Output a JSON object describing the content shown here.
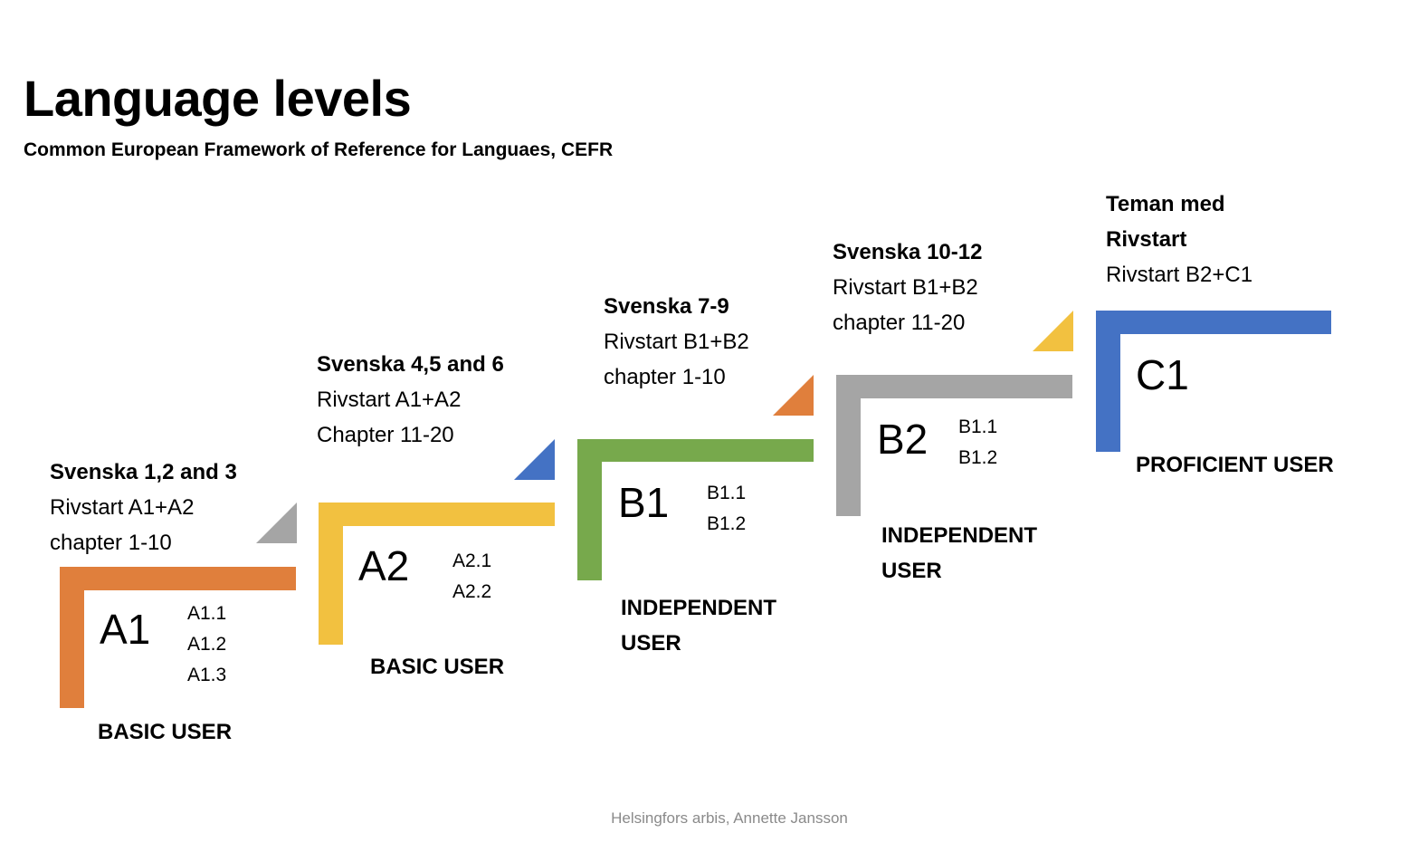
{
  "title": "Language levels",
  "subtitle": "Common European Framework of Reference for Languaes, CEFR",
  "levels": [
    {
      "code": "A1",
      "color": "#E07F3C",
      "triangle_color": "#A5A5A5",
      "sublevels": [
        "A1.1",
        "A1.2",
        "A1.3"
      ],
      "user": [
        "BASIC USER"
      ],
      "course": "Svenska 1,2 and 3",
      "book": "Rivstart A1+A2",
      "chapters": "chapter 1-10"
    },
    {
      "code": "A2",
      "color": "#F2C140",
      "triangle_color": "#4472C4",
      "sublevels": [
        "A2.1",
        "A2.2"
      ],
      "user": [
        "BASIC USER"
      ],
      "course": "Svenska 4,5 and 6",
      "book": "Rivstart A1+A2",
      "chapters": "Chapter 11-20"
    },
    {
      "code": "B1",
      "color": "#77A94C",
      "triangle_color": "#E07F3C",
      "sublevels": [
        "B1.1",
        "B1.2"
      ],
      "user": [
        "INDEPENDENT",
        "USER"
      ],
      "course": "Svenska 7-9",
      "book": "Rivstart B1+B2",
      "chapters": "chapter 1-10"
    },
    {
      "code": "B2",
      "color": "#A5A5A5",
      "triangle_color": "#F2C140",
      "sublevels": [
        "B1.1",
        "B1.2"
      ],
      "user": [
        "INDEPENDENT",
        "USER"
      ],
      "course": "Svenska 10-12",
      "book": "Rivstart B1+B2",
      "chapters": "chapter 11-20"
    },
    {
      "code": "C1",
      "color": "#4472C4",
      "sublevels": [],
      "user": [
        "PROFICIENT USER"
      ],
      "course_lines": [
        "Teman med",
        "Rivstart"
      ],
      "book": "Rivstart B2+C1"
    }
  ],
  "footer": "Helsingfors arbis, Annette Jansson"
}
